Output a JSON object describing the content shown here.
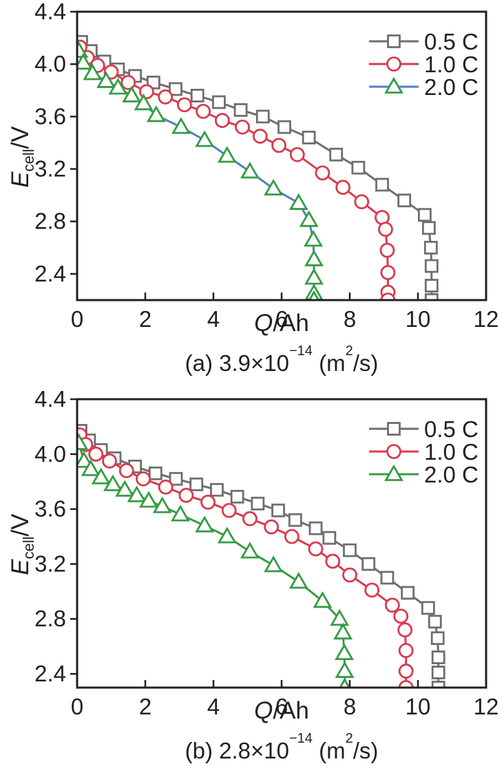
{
  "figure": {
    "description": "Cell discharge voltage curves at different C-rates for two diffusion coefficients"
  },
  "colors": {
    "axis": "#231f20",
    "text": "#231f20",
    "gray": "#6e6e6e",
    "red": "#d93b4c",
    "green": "#359c44",
    "blue": "#4f7fbf",
    "marker_fill": "#ffffff"
  },
  "chart_data": [
    {
      "type": "line",
      "panel": "a",
      "caption": {
        "pre": "(a) 3.9×10",
        "exp": "−14",
        "unit_pre": " (m",
        "unit_exp": "2",
        "unit_post": "/s)"
      },
      "xlabel_parts": {
        "em": "Q",
        "rest": "/Ah"
      },
      "ylabel_parts": {
        "em": "E",
        "sub": "cell",
        "rest": "/V"
      },
      "xlim": [
        0,
        12
      ],
      "ylim": [
        2.2,
        4.4
      ],
      "grid": false,
      "legend_position": "top-right",
      "xticks": [
        {
          "v": 0,
          "label": "0"
        },
        {
          "v": 2,
          "label": "2"
        },
        {
          "v": 4,
          "label": "4"
        },
        {
          "v": 6,
          "label": "6"
        },
        {
          "v": 8,
          "label": "8"
        },
        {
          "v": 10,
          "label": "10"
        },
        {
          "v": 12,
          "label": "12"
        }
      ],
      "yticks": [
        {
          "v": 4.4,
          "label": "4.4"
        },
        {
          "v": 4.0,
          "label": "4.0"
        },
        {
          "v": 3.6,
          "label": "3.6"
        },
        {
          "v": 3.2,
          "label": "3.2"
        },
        {
          "v": 2.8,
          "label": "2.8"
        },
        {
          "v": 2.4,
          "label": "2.4"
        }
      ],
      "series": [
        {
          "name": "0.5 C",
          "marker": "square",
          "line_color": "#6e6e6e",
          "marker_color": "#6e6e6e",
          "points": [
            [
              0.12,
              4.17
            ],
            [
              0.4,
              4.1
            ],
            [
              0.8,
              4.02
            ],
            [
              1.2,
              3.96
            ],
            [
              1.7,
              3.91
            ],
            [
              2.24,
              3.86
            ],
            [
              2.89,
              3.81
            ],
            [
              3.53,
              3.76
            ],
            [
              4.16,
              3.71
            ],
            [
              4.8,
              3.65
            ],
            [
              5.45,
              3.6
            ],
            [
              6.08,
              3.52
            ],
            [
              6.8,
              3.44
            ],
            [
              7.6,
              3.31
            ],
            [
              8.25,
              3.21
            ],
            [
              8.95,
              3.08
            ],
            [
              9.6,
              2.96
            ],
            [
              10.2,
              2.85
            ],
            [
              10.32,
              2.75
            ],
            [
              10.38,
              2.6
            ],
            [
              10.4,
              2.46
            ],
            [
              10.4,
              2.31
            ],
            [
              10.4,
              2.2
            ]
          ]
        },
        {
          "name": "1.0 C",
          "marker": "circle",
          "line_color": "#d93b4c",
          "marker_color": "#d93b4c",
          "points": [
            [
              0.08,
              4.13
            ],
            [
              0.3,
              4.05
            ],
            [
              0.6,
              3.99
            ],
            [
              1.0,
              3.94
            ],
            [
              1.5,
              3.86
            ],
            [
              2.04,
              3.79
            ],
            [
              2.59,
              3.75
            ],
            [
              3.15,
              3.69
            ],
            [
              3.7,
              3.64
            ],
            [
              4.26,
              3.57
            ],
            [
              4.85,
              3.52
            ],
            [
              5.37,
              3.45
            ],
            [
              5.92,
              3.38
            ],
            [
              6.46,
              3.31
            ],
            [
              7.2,
              3.17
            ],
            [
              7.8,
              3.06
            ],
            [
              8.35,
              2.95
            ],
            [
              8.95,
              2.83
            ],
            [
              9.05,
              2.74
            ],
            [
              9.1,
              2.58
            ],
            [
              9.12,
              2.41
            ],
            [
              9.12,
              2.26
            ],
            [
              9.12,
              2.2
            ]
          ]
        },
        {
          "name": "2.0 C",
          "marker": "triangle",
          "line_color": "#4f7fbf",
          "marker_color": "#359c44",
          "points": [
            [
              0.05,
              4.1
            ],
            [
              0.18,
              4.01
            ],
            [
              0.45,
              3.93
            ],
            [
              0.85,
              3.87
            ],
            [
              1.2,
              3.82
            ],
            [
              1.6,
              3.76
            ],
            [
              1.95,
              3.7
            ],
            [
              2.32,
              3.61
            ],
            [
              3.05,
              3.52
            ],
            [
              3.74,
              3.42
            ],
            [
              4.4,
              3.3
            ],
            [
              5.07,
              3.18
            ],
            [
              5.76,
              3.05
            ],
            [
              6.5,
              2.94
            ],
            [
              6.8,
              2.81
            ],
            [
              6.93,
              2.66
            ],
            [
              6.95,
              2.51
            ],
            [
              6.95,
              2.37
            ],
            [
              6.95,
              2.25
            ],
            [
              6.95,
              2.2
            ]
          ]
        }
      ]
    },
    {
      "type": "line",
      "panel": "b",
      "caption": {
        "pre": "(b) 2.8×10",
        "exp": "−14",
        "unit_pre": " (m",
        "unit_exp": "2",
        "unit_post": "/s)"
      },
      "xlabel_parts": {
        "em": "Q",
        "rest": "/Ah"
      },
      "ylabel_parts": {
        "em": "E",
        "sub": "cell",
        "rest": "/V"
      },
      "xlim": [
        0,
        12
      ],
      "ylim": [
        2.3,
        4.4
      ],
      "grid": false,
      "legend_position": "top-right",
      "xticks": [
        {
          "v": 0,
          "label": "0"
        },
        {
          "v": 2,
          "label": "2"
        },
        {
          "v": 4,
          "label": "4"
        },
        {
          "v": 6,
          "label": "6"
        },
        {
          "v": 8,
          "label": "8"
        },
        {
          "v": 10,
          "label": "10"
        },
        {
          "v": 12,
          "label": "12"
        }
      ],
      "yticks": [
        {
          "v": 4.4,
          "label": "4.4"
        },
        {
          "v": 4.0,
          "label": "4.0"
        },
        {
          "v": 3.6,
          "label": "3.6"
        },
        {
          "v": 3.2,
          "label": "3.2"
        },
        {
          "v": 2.8,
          "label": "2.8"
        },
        {
          "v": 2.4,
          "label": "2.4"
        }
      ],
      "series": [
        {
          "name": "0.5 C",
          "marker": "square",
          "line_color": "#6e6e6e",
          "marker_color": "#6e6e6e",
          "points": [
            [
              0.1,
              4.17
            ],
            [
              0.35,
              4.1
            ],
            [
              0.7,
              4.03
            ],
            [
              1.1,
              3.97
            ],
            [
              1.7,
              3.91
            ],
            [
              2.3,
              3.86
            ],
            [
              2.9,
              3.82
            ],
            [
              3.5,
              3.78
            ],
            [
              4.1,
              3.74
            ],
            [
              4.7,
              3.69
            ],
            [
              5.3,
              3.64
            ],
            [
              5.9,
              3.59
            ],
            [
              6.4,
              3.52
            ],
            [
              7.0,
              3.46
            ],
            [
              7.4,
              3.39
            ],
            [
              8.0,
              3.3
            ],
            [
              8.55,
              3.2
            ],
            [
              9.1,
              3.1
            ],
            [
              9.7,
              2.99
            ],
            [
              10.3,
              2.88
            ],
            [
              10.5,
              2.78
            ],
            [
              10.58,
              2.66
            ],
            [
              10.6,
              2.52
            ],
            [
              10.6,
              2.41
            ],
            [
              10.6,
              2.3
            ]
          ]
        },
        {
          "name": "1.0 C",
          "marker": "circle",
          "line_color": "#d93b4c",
          "marker_color": "#d93b4c",
          "points": [
            [
              0.08,
              4.14
            ],
            [
              0.25,
              4.07
            ],
            [
              0.55,
              4.0
            ],
            [
              0.95,
              3.95
            ],
            [
              1.45,
              3.88
            ],
            [
              1.94,
              3.82
            ],
            [
              2.6,
              3.76
            ],
            [
              3.2,
              3.7
            ],
            [
              3.84,
              3.65
            ],
            [
              4.46,
              3.59
            ],
            [
              5.07,
              3.53
            ],
            [
              5.7,
              3.47
            ],
            [
              6.3,
              3.4
            ],
            [
              7.0,
              3.31
            ],
            [
              7.5,
              3.22
            ],
            [
              8.0,
              3.12
            ],
            [
              8.65,
              3.01
            ],
            [
              9.25,
              2.9
            ],
            [
              9.5,
              2.82
            ],
            [
              9.62,
              2.72
            ],
            [
              9.65,
              2.57
            ],
            [
              9.65,
              2.42
            ],
            [
              9.65,
              2.3
            ]
          ]
        },
        {
          "name": "2.0 C",
          "marker": "triangle",
          "line_color": "#359c44",
          "marker_color": "#359c44",
          "points": [
            [
              0.05,
              4.08
            ],
            [
              0.2,
              3.95
            ],
            [
              0.4,
              3.89
            ],
            [
              0.7,
              3.83
            ],
            [
              1.05,
              3.78
            ],
            [
              1.4,
              3.74
            ],
            [
              1.75,
              3.7
            ],
            [
              2.1,
              3.66
            ],
            [
              2.5,
              3.62
            ],
            [
              3.03,
              3.56
            ],
            [
              3.74,
              3.48
            ],
            [
              4.4,
              3.4
            ],
            [
              5.07,
              3.29
            ],
            [
              5.76,
              3.19
            ],
            [
              6.5,
              3.07
            ],
            [
              7.2,
              2.93
            ],
            [
              7.7,
              2.8
            ],
            [
              7.8,
              2.7
            ],
            [
              7.84,
              2.55
            ],
            [
              7.85,
              2.42
            ],
            [
              7.85,
              2.3
            ]
          ]
        }
      ]
    }
  ]
}
